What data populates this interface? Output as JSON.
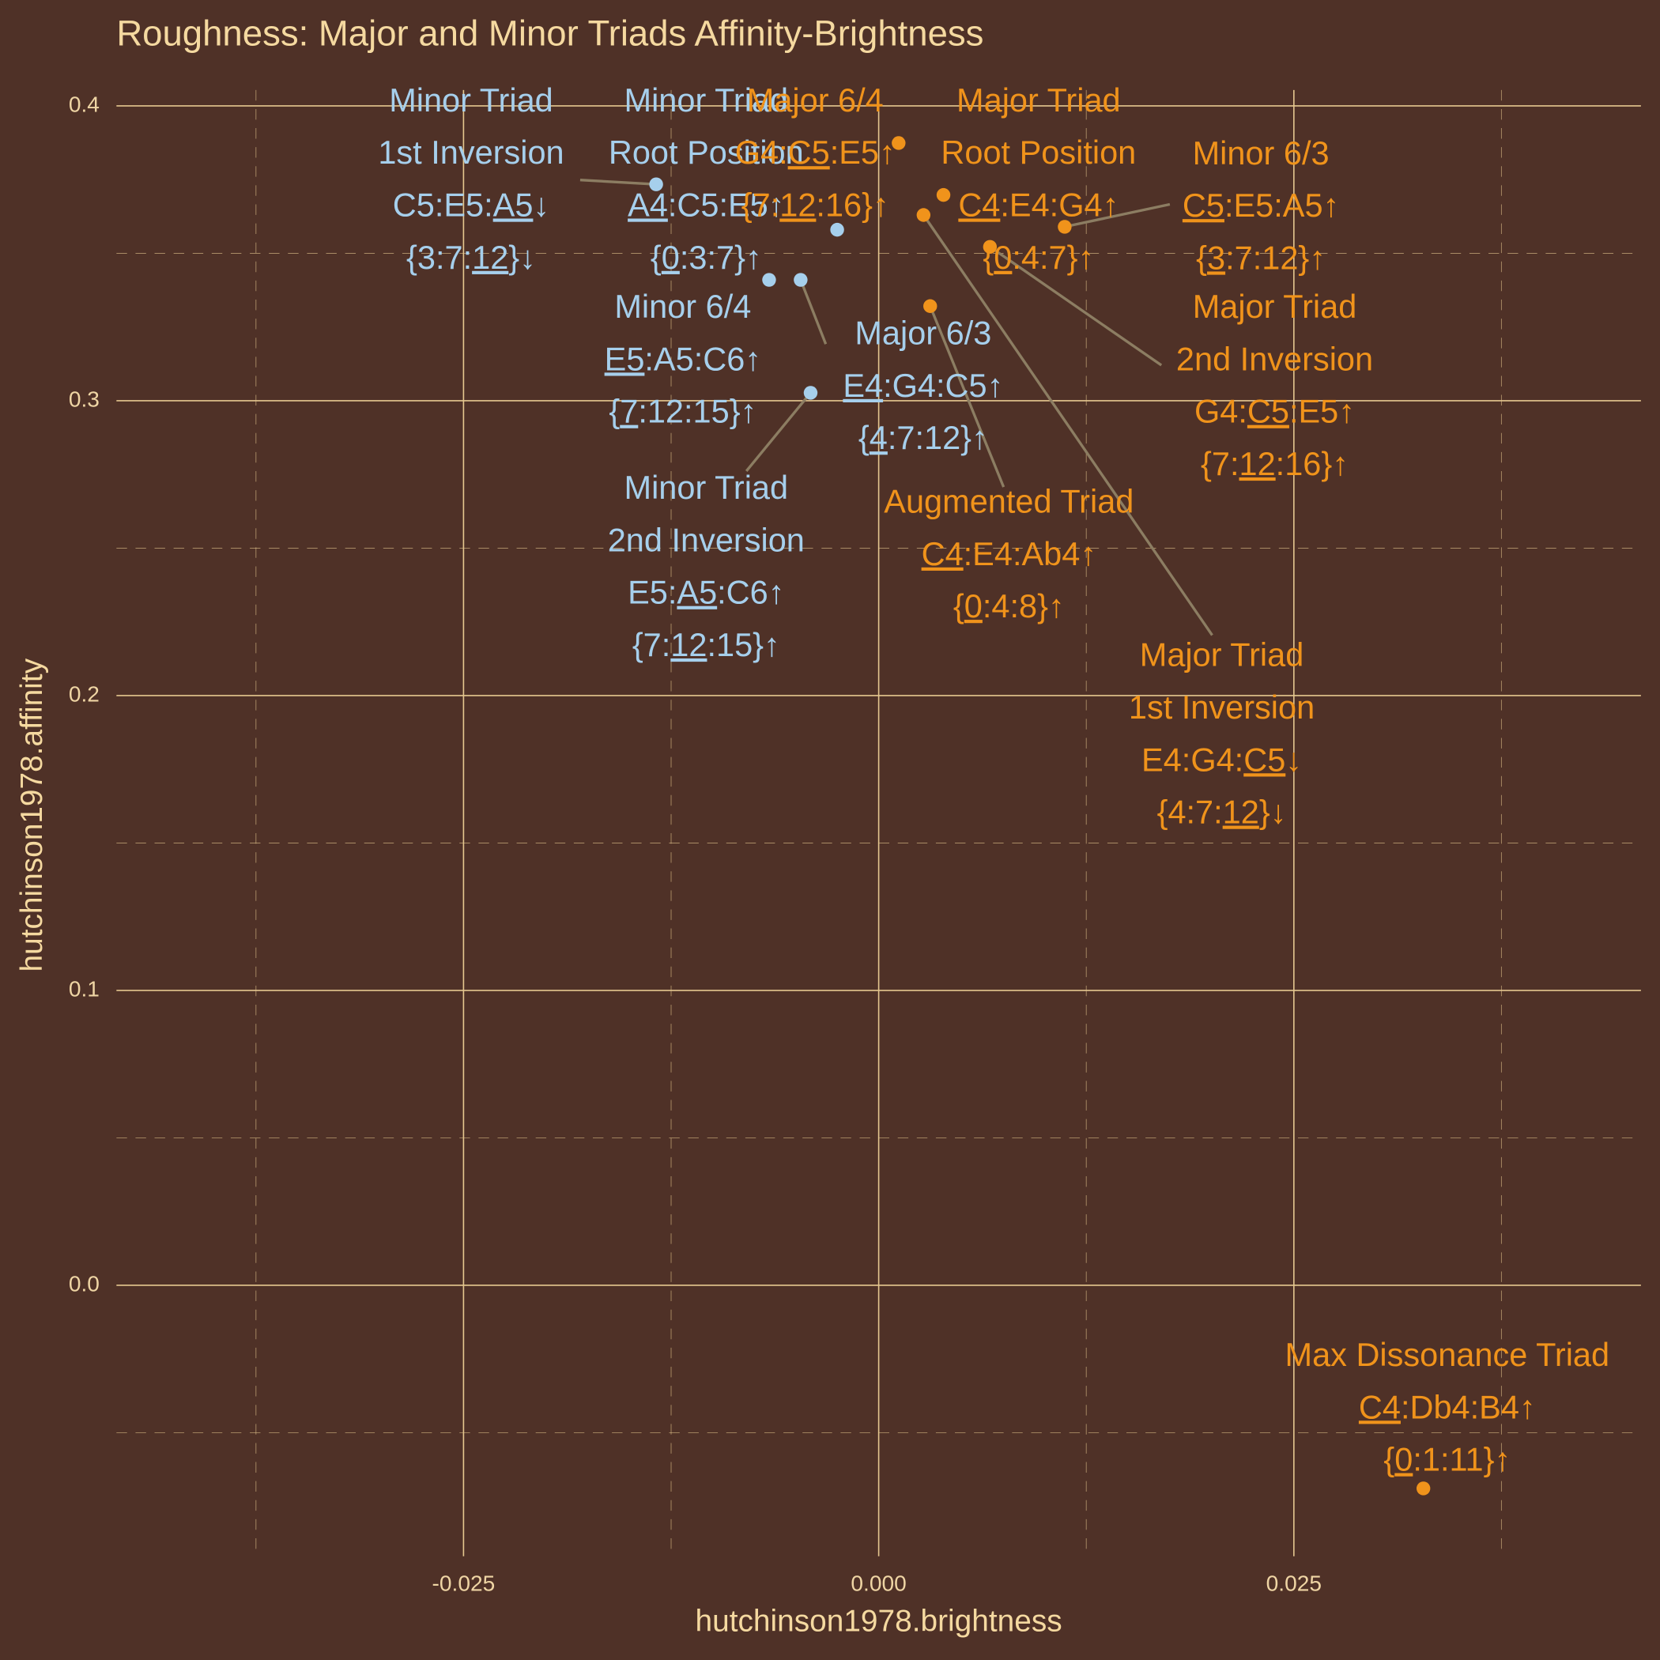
{
  "chart_data": {
    "type": "scatter",
    "title": "Roughness: Major and Minor Triads Affinity-Brightness",
    "x_label": "hutchinson1978.brightness",
    "y_label": "hutchinson1978.affinity",
    "xlim": [
      -0.0459,
      0.0459
    ],
    "ylim": [
      -0.0919,
      0.4054
    ],
    "xticks": [
      {
        "value": -0.025,
        "label": "-0.025"
      },
      {
        "value": 0,
        "label": "0.000"
      },
      {
        "value": 0.025,
        "label": "0.025"
      }
    ],
    "yticks": [
      {
        "value": 0,
        "label": "0.0"
      },
      0.1,
      0.2,
      0.3,
      0.4
    ],
    "x_minor_ticks": [
      -0.0375,
      -0.0125,
      0.0125,
      0.0375
    ],
    "y_minor_ticks": [
      -0.05,
      0.05,
      0.15,
      0.25,
      0.35
    ],
    "grid": true,
    "points": [
      {
        "x": -0.0134,
        "y": 0.3734,
        "color": "#a6cfec",
        "label": [
          "Minor Triad",
          "1st Inversion",
          [
            "C5:E5:",
            {
              "text": "A5",
              "underline": true
            },
            "↓"
          ],
          [
            "{3:7:",
            {
              "text": "12",
              "underline": true
            },
            "}↓"
          ]
        ]
      },
      {
        "x": -0.0025,
        "y": 0.358,
        "color": "#a6cfec",
        "label": [
          "Minor Triad",
          "Root Position",
          [
            {
              "text": "A4",
              "underline": true
            },
            ":C5:E5↑"
          ],
          [
            "{",
            {
              "text": "0",
              "underline": true
            },
            ":3:7}↑"
          ]
        ]
      },
      {
        "x": -0.0066,
        "y": 0.341,
        "color": "#a6cfec",
        "label": [
          "Minor 6/4",
          [
            {
              "text": "E5",
              "underline": true
            },
            ":A5:C6↑"
          ],
          [
            "{",
            {
              "text": "7",
              "underline": true
            },
            ":12:15}↑"
          ]
        ]
      },
      {
        "x": -0.0047,
        "y": 0.341,
        "color": "#a6cfec",
        "label": [
          "Major 6/3",
          [
            {
              "text": "E4",
              "underline": true
            },
            ":G4:C5↑"
          ],
          [
            "{",
            {
              "text": "4",
              "underline": true
            },
            ":7:12}↑"
          ]
        ]
      },
      {
        "x": -0.0041,
        "y": 0.3027,
        "color": "#a6cfec",
        "label": [
          "Minor Triad",
          "2nd Inversion",
          [
            "E5:",
            {
              "text": "A5",
              "underline": true
            },
            ":C6↑"
          ],
          [
            "{7:",
            {
              "text": "12",
              "underline": true
            },
            ":15}↑"
          ]
        ]
      },
      {
        "x": 0.0012,
        "y": 0.3874,
        "color": "#f0931b",
        "label": [
          "Major 6/4",
          [
            "G4:",
            {
              "text": "C5",
              "underline": true
            },
            ":E5↑"
          ],
          [
            "{7:",
            {
              "text": "12",
              "underline": true
            },
            ":16}↑"
          ]
        ]
      },
      {
        "x": 0.0039,
        "y": 0.3698,
        "color": "#f0931b",
        "label": [
          "Major Triad",
          "Root Position",
          [
            {
              "text": "C4",
              "underline": true
            },
            ":E4:G4↑"
          ],
          [
            "{",
            {
              "text": "0",
              "underline": true
            },
            ":4:7}↑"
          ]
        ]
      },
      {
        "x": 0.0027,
        "y": 0.363,
        "color": "#f0931b",
        "label": [
          "Major Triad",
          "1st Inversion",
          [
            "E4:G4:",
            {
              "text": "C5",
              "underline": true
            },
            "↓"
          ],
          [
            "{4:7:",
            {
              "text": "12",
              "underline": true
            },
            "}↓"
          ]
        ]
      },
      {
        "x": 0.0031,
        "y": 0.3321,
        "color": "#f0931b",
        "label": [
          "Augmented Triad",
          [
            {
              "text": "C4",
              "underline": true
            },
            ":E4:Ab4↑"
          ],
          [
            "{",
            {
              "text": "0",
              "underline": true
            },
            ":4:8}↑"
          ]
        ]
      },
      {
        "x": 0.0067,
        "y": 0.3522,
        "color": "#f0931b",
        "label": [
          "Major Triad",
          "2nd Inversion",
          [
            "G4:",
            {
              "text": "C5",
              "underline": true
            },
            ":E5↑"
          ],
          [
            "{7:",
            {
              "text": "12",
              "underline": true
            },
            ":16}↑"
          ]
        ]
      },
      {
        "x": 0.0112,
        "y": 0.359,
        "color": "#f0931b",
        "label": [
          "Minor 6/3",
          [
            {
              "text": "C5",
              "underline": true
            },
            ":E5:A5↑"
          ],
          [
            "{",
            {
              "text": "3",
              "underline": true
            },
            ":7:12}↑"
          ]
        ]
      },
      {
        "x": 0.0328,
        "y": -0.0689,
        "color": "#f0931b",
        "label": [
          "Max Dissonance Triad",
          [
            {
              "text": "C4",
              "underline": true
            },
            ":Db4:B4↑"
          ],
          [
            "{",
            {
              "text": "0",
              "underline": true
            },
            ":1:11}↑"
          ]
        ]
      }
    ]
  }
}
